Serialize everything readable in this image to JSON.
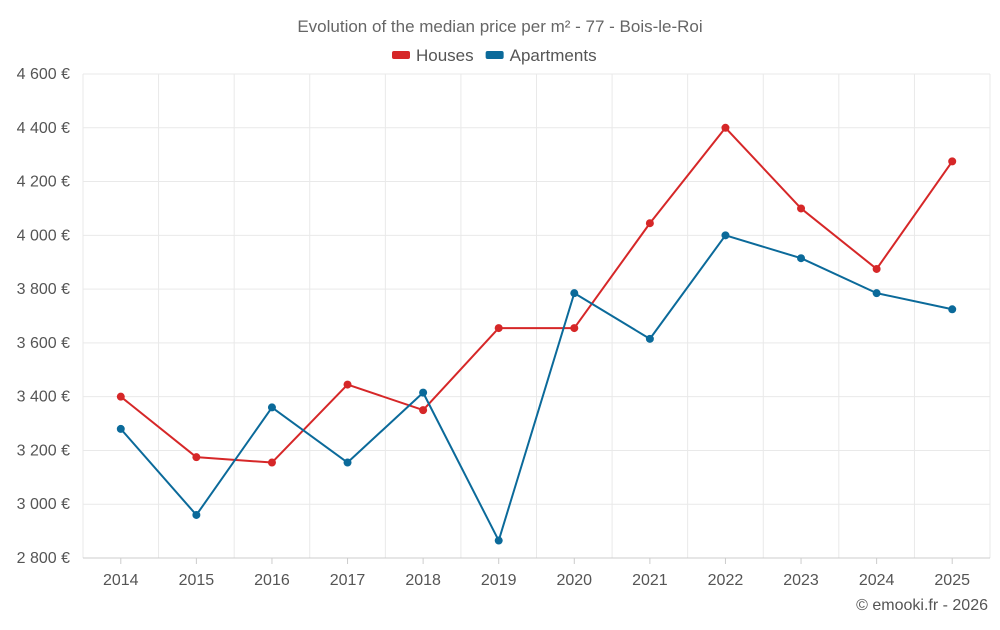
{
  "chart_data": {
    "type": "line",
    "title": "Evolution of the median price per m² - 77 - Bois-le-Roi",
    "xlabel": "",
    "ylabel": "",
    "categories": [
      "2014",
      "2015",
      "2016",
      "2017",
      "2018",
      "2019",
      "2020",
      "2021",
      "2022",
      "2023",
      "2024",
      "2025"
    ],
    "series": [
      {
        "name": "Houses",
        "color": "#d62728",
        "values": [
          3400,
          3175,
          3155,
          3445,
          3350,
          3655,
          3655,
          4045,
          4400,
          4100,
          3875,
          4275
        ]
      },
      {
        "name": "Apartments",
        "color": "#0b6a9a",
        "values": [
          3280,
          2960,
          3360,
          3155,
          3415,
          2865,
          3785,
          3615,
          4000,
          3915,
          3785,
          3725
        ]
      }
    ],
    "ylim": [
      2800,
      4600
    ],
    "yticks": [
      2800,
      3000,
      3200,
      3400,
      3600,
      3800,
      4000,
      4200,
      4400,
      4600
    ],
    "ytick_labels": [
      "2 800 €",
      "3 000 €",
      "3 200 €",
      "3 400 €",
      "3 600 €",
      "3 800 €",
      "4 000 €",
      "4 200 €",
      "4 400 €",
      "4 600 €"
    ],
    "grid": true,
    "legend_position": "top-center",
    "credit": "© emooki.fr - 2026"
  }
}
